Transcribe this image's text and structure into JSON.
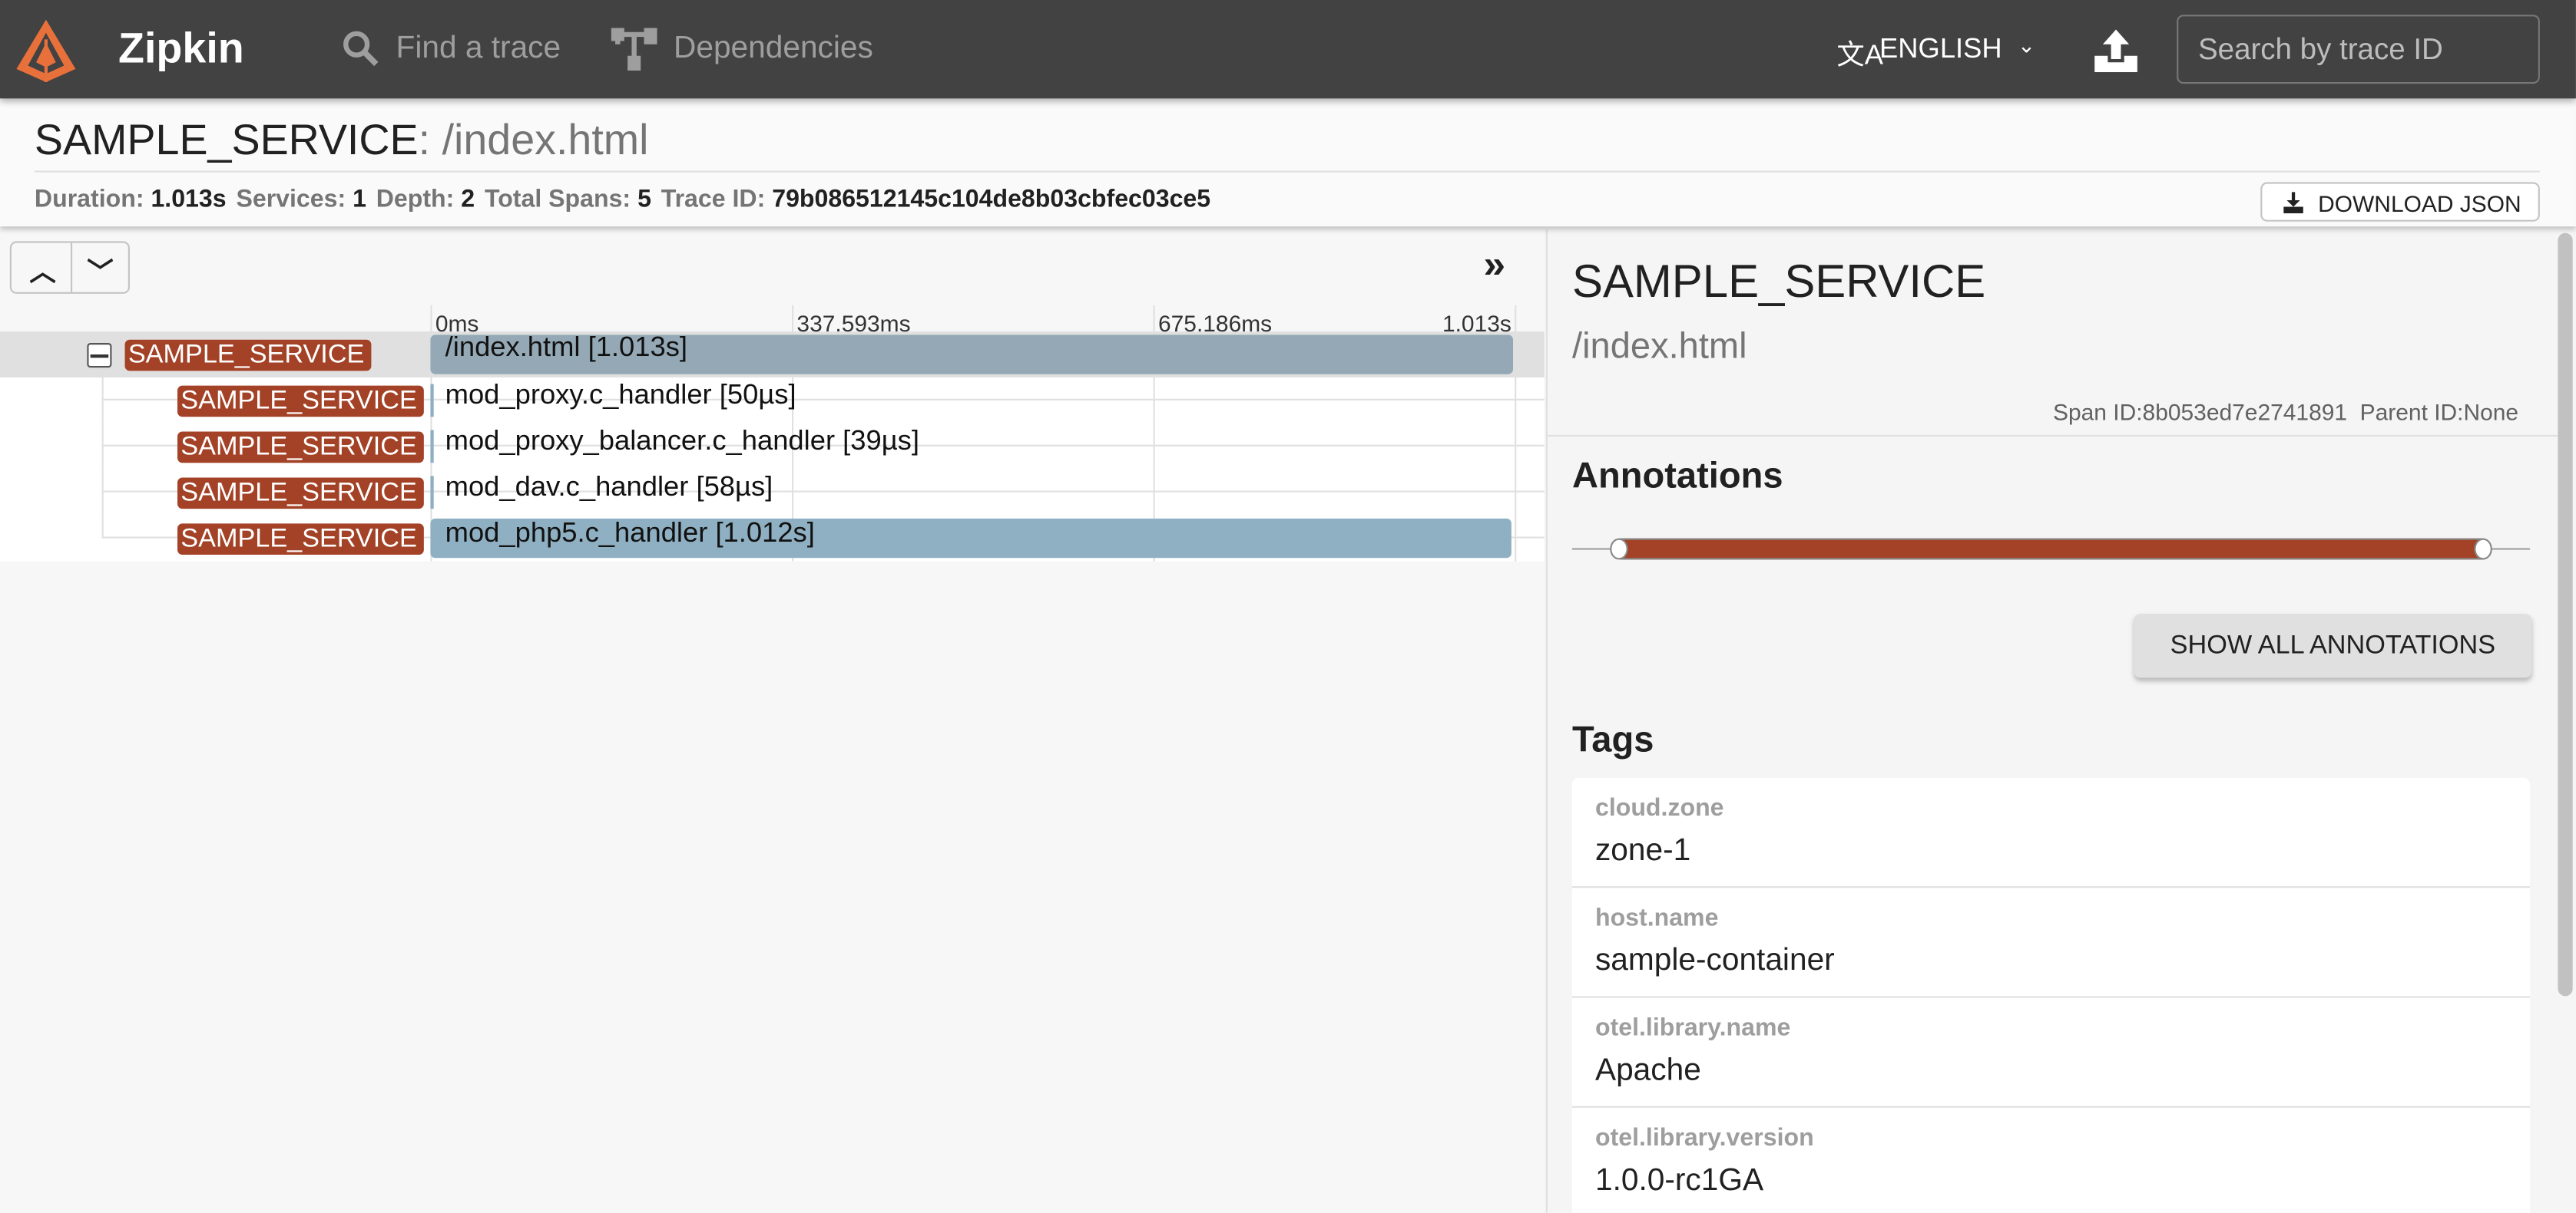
{
  "header": {
    "brand": "Zipkin",
    "nav": [
      {
        "label": "Find a trace",
        "icon": "search-icon"
      },
      {
        "label": "Dependencies",
        "icon": "dependencies-icon"
      }
    ],
    "language": "ENGLISH",
    "search_placeholder": "Search by trace ID",
    "colors": {
      "bg": "#424242",
      "logo": "#e8703a"
    }
  },
  "trace": {
    "service": "SAMPLE_SERVICE",
    "separator": ":",
    "name": " /index.html",
    "stats": [
      {
        "k": "Duration:",
        "v": "1.013s"
      },
      {
        "k": "Services:",
        "v": "1"
      },
      {
        "k": "Depth:",
        "v": "2"
      },
      {
        "k": "Total Spans:",
        "v": "5"
      },
      {
        "k": "Trace ID:",
        "v": "79b086512145c104de8b03cbfec03ce5"
      }
    ],
    "download_label": "DOWNLOAD JSON"
  },
  "timeline": {
    "ticks": [
      "0ms",
      "337.593ms",
      "675.186ms",
      "1.013s"
    ],
    "spans": [
      {
        "service": "SAMPLE_SERVICE",
        "label": "/index.html [1.013s]",
        "start": 0,
        "fraction": 1.0,
        "depth": 0,
        "selected": true
      },
      {
        "service": "SAMPLE_SERVICE",
        "label": "mod_proxy.c_handler [50µs]",
        "start": 0,
        "fraction": 5e-05,
        "depth": 1
      },
      {
        "service": "SAMPLE_SERVICE",
        "label": "mod_proxy_balancer.c_handler [39µs]",
        "start": 0,
        "fraction": 4e-05,
        "depth": 1
      },
      {
        "service": "SAMPLE_SERVICE",
        "label": "mod_dav.c_handler [58µs]",
        "start": 0,
        "fraction": 6e-05,
        "depth": 1
      },
      {
        "service": "SAMPLE_SERVICE",
        "label": "mod_php5.c_handler [1.012s]",
        "start": 0,
        "fraction": 0.999,
        "depth": 1
      }
    ],
    "colors": {
      "badge": "#a34226",
      "bar_selected": "#94a9b5",
      "bar": "#8fb0c2"
    }
  },
  "detail": {
    "service": "SAMPLE_SERVICE",
    "name": "/index.html",
    "span_id_label": "Span ID:",
    "span_id": "8b053ed7e2741891",
    "parent_id_label": "Parent ID:",
    "parent_id": "None",
    "annotations_title": "Annotations",
    "show_all_label": "SHOW ALL ANNOTATIONS",
    "annotation_color": "#a34226",
    "tags_title": "Tags",
    "tags": [
      {
        "k": "cloud.zone",
        "v": "zone-1"
      },
      {
        "k": "host.name",
        "v": "sample-container"
      },
      {
        "k": "otel.library.name",
        "v": "Apache"
      },
      {
        "k": "otel.library.version",
        "v": "1.0.0-rc1GA"
      }
    ]
  }
}
